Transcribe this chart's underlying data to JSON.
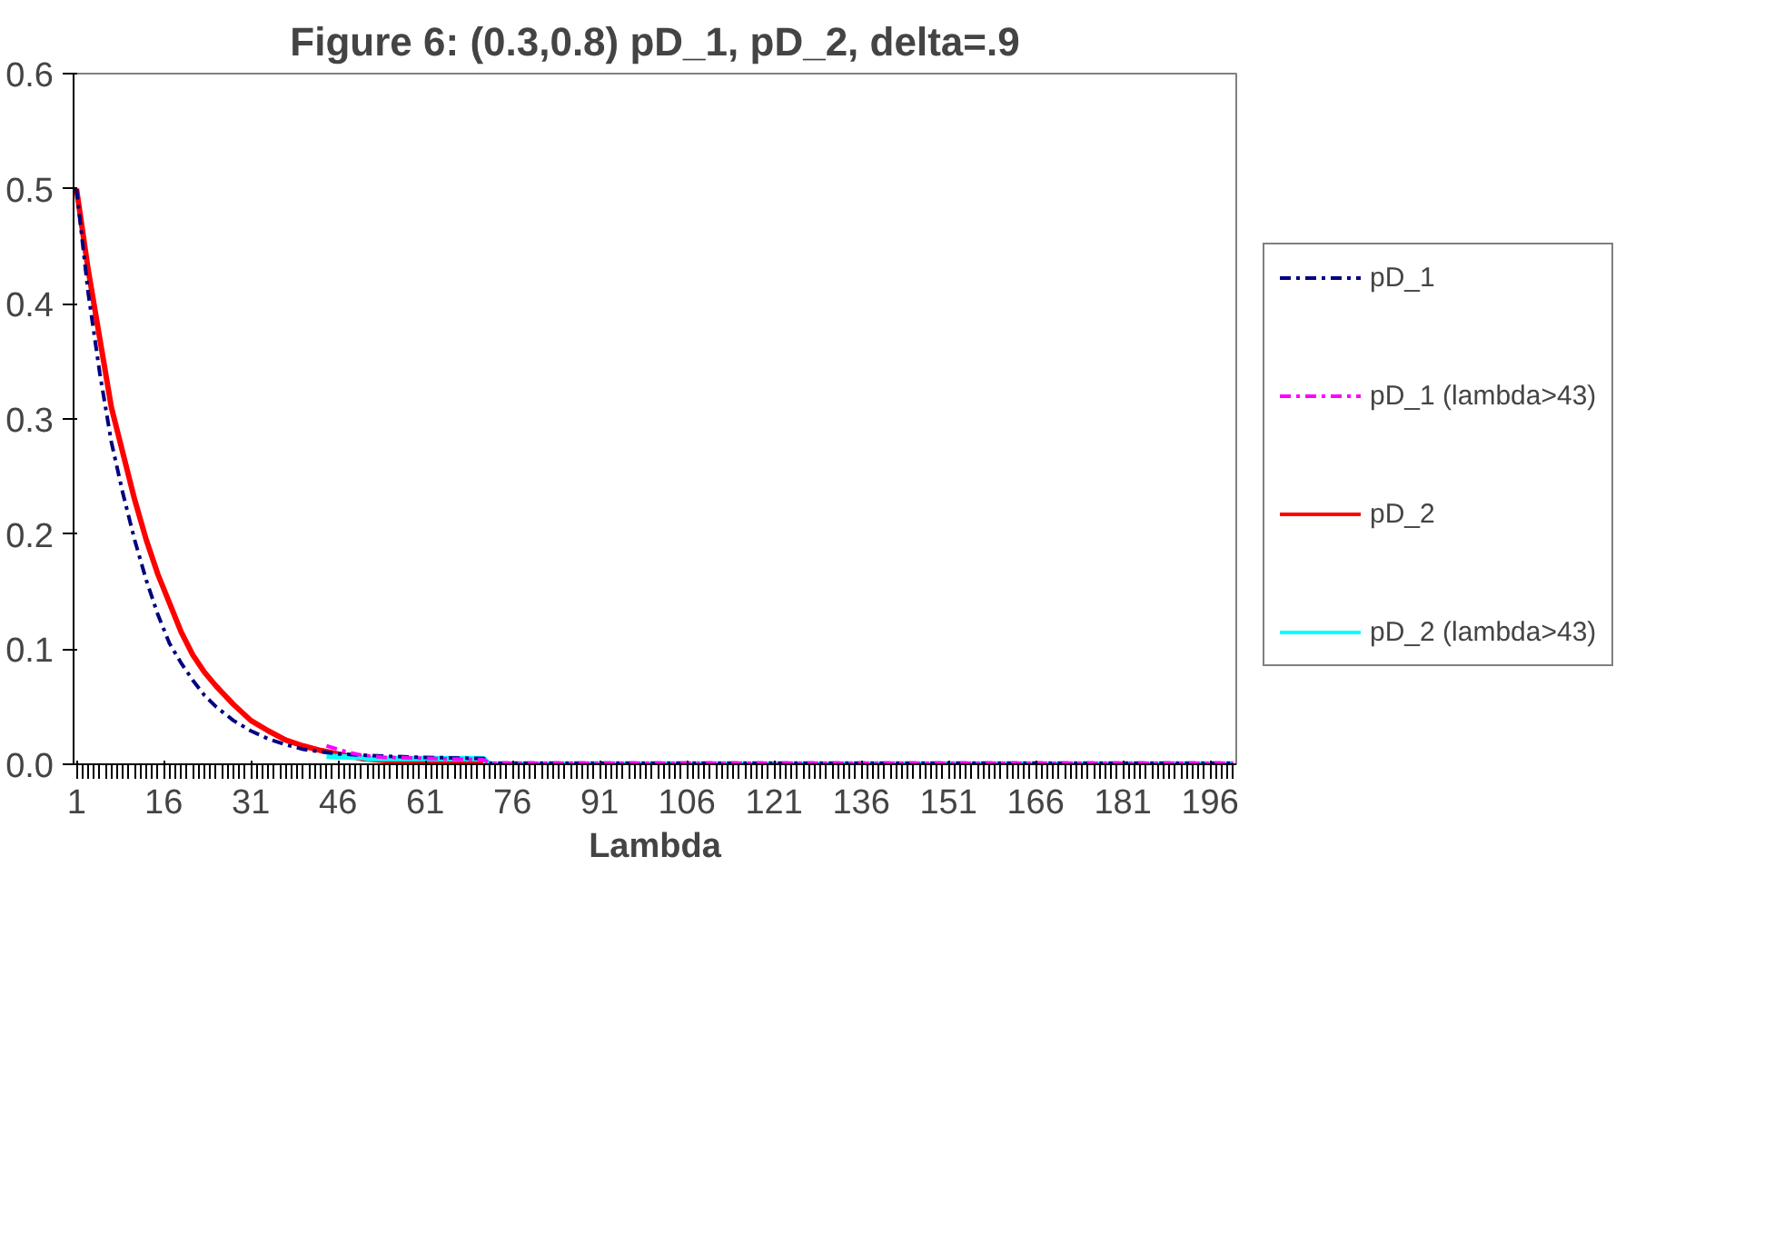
{
  "chart_data": {
    "type": "line",
    "title": "Figure 6: (0.3,0.8) pD_1, pD_2, delta=.9",
    "xlabel": "Lambda",
    "xlim": [
      0.5,
      200.5
    ],
    "xticks": [
      1,
      16,
      31,
      46,
      61,
      76,
      91,
      106,
      121,
      136,
      151,
      166,
      181,
      196
    ],
    "ylim": [
      0,
      0.6
    ],
    "yticks": [
      {
        "value": 0,
        "label": "0.0"
      },
      0.1,
      0.2,
      0.3,
      0.4,
      0.5,
      0.6
    ],
    "grid": false,
    "legend": "right",
    "marker": "none",
    "series": [
      {
        "name": "pD_1",
        "color": "#000080",
        "line_style": "dashdot",
        "x": [
          1,
          3,
          5,
          7,
          9,
          11,
          13,
          15,
          17,
          19,
          21,
          23,
          25,
          28,
          31,
          34,
          37,
          40,
          43,
          46,
          50,
          54,
          60,
          71,
          72,
          200
        ],
        "values": [
          0.5,
          0.41,
          0.34,
          0.28,
          0.235,
          0.195,
          0.16,
          0.13,
          0.105,
          0.088,
          0.073,
          0.06,
          0.05,
          0.038,
          0.029,
          0.022,
          0.017,
          0.013,
          0.011,
          0.009,
          0.008,
          0.007,
          0.006,
          0.005,
          0.001,
          0.001
        ]
      },
      {
        "name": "pD_1 (lambda>43)",
        "color": "#ff00ff",
        "line_style": "dashdot",
        "x": [
          44,
          46,
          48,
          50,
          54,
          71,
          72,
          200
        ],
        "values": [
          0.016,
          0.013,
          0.01,
          0.008,
          0.006,
          0.004,
          0.001,
          0.001
        ]
      },
      {
        "name": "pD_2",
        "color": "#ff0000",
        "line_style": "solid",
        "x": [
          1,
          3,
          5,
          7,
          9,
          11,
          13,
          15,
          17,
          19,
          21,
          23,
          25,
          28,
          31,
          34,
          37,
          40,
          43,
          46,
          50,
          55,
          63,
          64,
          71
        ],
        "values": [
          0.5,
          0.43,
          0.37,
          0.31,
          0.27,
          0.23,
          0.195,
          0.165,
          0.14,
          0.115,
          0.095,
          0.08,
          0.068,
          0.052,
          0.038,
          0.029,
          0.021,
          0.016,
          0.012,
          0.009,
          0.005,
          0.003,
          0.003,
          0.001,
          0.001
        ]
      },
      {
        "name": "pD_2 (lambda>43)",
        "color": "#00ffff",
        "line_style": "solid",
        "x": [
          44,
          50,
          51,
          71,
          72,
          200
        ],
        "values": [
          0.007,
          0.006,
          0.005,
          0.005,
          0,
          0
        ]
      }
    ]
  }
}
